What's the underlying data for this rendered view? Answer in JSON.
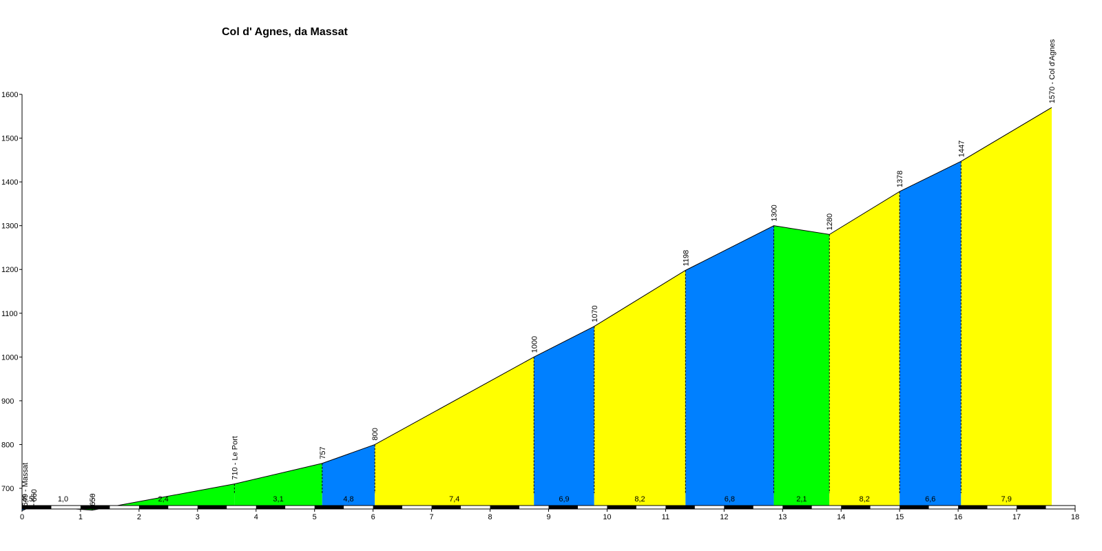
{
  "chart_data": {
    "type": "area",
    "title": "Col d' Agnes, da Massat",
    "xlabel": "",
    "ylabel": "",
    "xlim": [
      0,
      18
    ],
    "ylim": [
      610,
      1600
    ],
    "x_ticks": [
      "0",
      "1",
      "2",
      "3",
      "4",
      "5",
      "6",
      "7",
      "8",
      "9",
      "10",
      "11",
      "12",
      "13",
      "14",
      "15",
      "16",
      "17",
      "18"
    ],
    "y_ticks": [
      "700",
      "800",
      "900",
      "1000",
      "1100",
      "1200",
      "1300",
      "1400",
      "1500",
      "1600"
    ],
    "points": [
      {
        "x": 0,
        "y": 649,
        "label": "649 - Massat"
      },
      {
        "x": 0.2,
        "y": 660,
        "label": "660"
      },
      {
        "x": 1.2,
        "y": 650,
        "label": "650"
      },
      {
        "x": 3.63,
        "y": 710,
        "label": "710 - Le Port"
      },
      {
        "x": 5.13,
        "y": 757,
        "label": "757"
      },
      {
        "x": 6.03,
        "y": 800,
        "label": "800"
      },
      {
        "x": 8.75,
        "y": 1000,
        "label": "1000"
      },
      {
        "x": 9.78,
        "y": 1070,
        "label": "1070"
      },
      {
        "x": 11.34,
        "y": 1198,
        "label": "1198"
      },
      {
        "x": 12.85,
        "y": 1300,
        "label": "1300"
      },
      {
        "x": 13.8,
        "y": 1280,
        "label": "1280"
      },
      {
        "x": 15.0,
        "y": 1378,
        "label": "1378"
      },
      {
        "x": 16.05,
        "y": 1447,
        "label": "1447"
      },
      {
        "x": 17.6,
        "y": 1570,
        "label": "1570 - Col d'Agnes"
      }
    ],
    "segments": [
      {
        "from": 0,
        "to": 0.2,
        "gradient": "5,5",
        "color": "#0080ff"
      },
      {
        "from": 0.2,
        "to": 1.2,
        "gradient": "1,0",
        "color": "#00ff00"
      },
      {
        "from": 1.2,
        "to": 3.63,
        "gradient": "2,4",
        "color": "#00ff00"
      },
      {
        "from": 3.63,
        "to": 5.13,
        "gradient": "3,1",
        "color": "#00ff00"
      },
      {
        "from": 5.13,
        "to": 6.03,
        "gradient": "4,8",
        "color": "#0080ff"
      },
      {
        "from": 6.03,
        "to": 8.75,
        "gradient": "7,4",
        "color": "#ffff00"
      },
      {
        "from": 8.75,
        "to": 9.78,
        "gradient": "6,9",
        "color": "#0080ff"
      },
      {
        "from": 9.78,
        "to": 11.34,
        "gradient": "8,2",
        "color": "#ffff00"
      },
      {
        "from": 11.34,
        "to": 12.85,
        "gradient": "6,8",
        "color": "#0080ff"
      },
      {
        "from": 12.85,
        "to": 13.8,
        "gradient": "2,1",
        "color": "#00ff00"
      },
      {
        "from": 13.8,
        "to": 15.0,
        "gradient": "8,2",
        "color": "#ffff00"
      },
      {
        "from": 15.0,
        "to": 16.05,
        "gradient": "6,6",
        "color": "#0080ff"
      },
      {
        "from": 16.05,
        "to": 17.6,
        "gradient": "7,9",
        "color": "#ffff00"
      }
    ]
  }
}
